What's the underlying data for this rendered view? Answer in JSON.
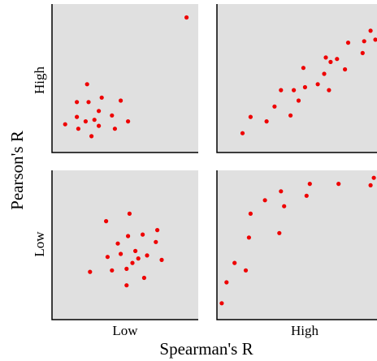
{
  "chart_data": {
    "type": "scatter",
    "xlabel": "Spearman's R",
    "ylabel": "Pearson's R",
    "x_groups": [
      "Low",
      "High"
    ],
    "y_groups": [
      "High",
      "Low"
    ],
    "point_color": "#ee0000",
    "panel_color": "#e0e0e0",
    "grid": false,
    "panels": [
      {
        "name": "low-spearman-high-pearson",
        "spearman": "Low",
        "pearson": "High",
        "xlim": [
          0,
          1
        ],
        "ylim": [
          0,
          1
        ],
        "points": [
          {
            "x": 0.09,
            "y": 0.19
          },
          {
            "x": 0.17,
            "y": 0.34
          },
          {
            "x": 0.17,
            "y": 0.24
          },
          {
            "x": 0.18,
            "y": 0.16
          },
          {
            "x": 0.23,
            "y": 0.21
          },
          {
            "x": 0.24,
            "y": 0.46
          },
          {
            "x": 0.25,
            "y": 0.34
          },
          {
            "x": 0.27,
            "y": 0.11
          },
          {
            "x": 0.29,
            "y": 0.22
          },
          {
            "x": 0.32,
            "y": 0.28
          },
          {
            "x": 0.32,
            "y": 0.18
          },
          {
            "x": 0.34,
            "y": 0.37
          },
          {
            "x": 0.41,
            "y": 0.25
          },
          {
            "x": 0.43,
            "y": 0.16
          },
          {
            "x": 0.47,
            "y": 0.35
          },
          {
            "x": 0.52,
            "y": 0.21
          },
          {
            "x": 0.92,
            "y": 0.91
          }
        ]
      },
      {
        "name": "high-spearman-high-pearson",
        "spearman": "High",
        "pearson": "High",
        "xlim": [
          0,
          1
        ],
        "ylim": [
          0,
          1
        ],
        "points": [
          {
            "x": 0.16,
            "y": 0.13
          },
          {
            "x": 0.21,
            "y": 0.24
          },
          {
            "x": 0.31,
            "y": 0.21
          },
          {
            "x": 0.36,
            "y": 0.31
          },
          {
            "x": 0.4,
            "y": 0.42
          },
          {
            "x": 0.46,
            "y": 0.25
          },
          {
            "x": 0.48,
            "y": 0.42
          },
          {
            "x": 0.51,
            "y": 0.35
          },
          {
            "x": 0.54,
            "y": 0.57
          },
          {
            "x": 0.55,
            "y": 0.44
          },
          {
            "x": 0.63,
            "y": 0.46
          },
          {
            "x": 0.67,
            "y": 0.53
          },
          {
            "x": 0.68,
            "y": 0.64
          },
          {
            "x": 0.7,
            "y": 0.42
          },
          {
            "x": 0.71,
            "y": 0.61
          },
          {
            "x": 0.75,
            "y": 0.63
          },
          {
            "x": 0.8,
            "y": 0.56
          },
          {
            "x": 0.82,
            "y": 0.74
          },
          {
            "x": 0.91,
            "y": 0.67
          },
          {
            "x": 0.92,
            "y": 0.75
          },
          {
            "x": 0.96,
            "y": 0.82
          },
          {
            "x": 0.99,
            "y": 0.76
          }
        ]
      },
      {
        "name": "low-spearman-low-pearson",
        "spearman": "Low",
        "pearson": "Low",
        "xlim": [
          0,
          1
        ],
        "ylim": [
          0,
          1
        ],
        "points": [
          {
            "x": 0.26,
            "y": 0.32
          },
          {
            "x": 0.37,
            "y": 0.66
          },
          {
            "x": 0.38,
            "y": 0.42
          },
          {
            "x": 0.41,
            "y": 0.33
          },
          {
            "x": 0.45,
            "y": 0.51
          },
          {
            "x": 0.47,
            "y": 0.44
          },
          {
            "x": 0.51,
            "y": 0.23
          },
          {
            "x": 0.51,
            "y": 0.34
          },
          {
            "x": 0.52,
            "y": 0.56
          },
          {
            "x": 0.53,
            "y": 0.71
          },
          {
            "x": 0.55,
            "y": 0.38
          },
          {
            "x": 0.57,
            "y": 0.46
          },
          {
            "x": 0.59,
            "y": 0.41
          },
          {
            "x": 0.62,
            "y": 0.57
          },
          {
            "x": 0.63,
            "y": 0.28
          },
          {
            "x": 0.65,
            "y": 0.43
          },
          {
            "x": 0.71,
            "y": 0.52
          },
          {
            "x": 0.72,
            "y": 0.6
          },
          {
            "x": 0.75,
            "y": 0.4
          }
        ]
      },
      {
        "name": "high-spearman-low-pearson",
        "spearman": "High",
        "pearson": "Low",
        "xlim": [
          0,
          1
        ],
        "ylim": [
          0,
          1
        ],
        "points": [
          {
            "x": 0.03,
            "y": 0.11
          },
          {
            "x": 0.06,
            "y": 0.25
          },
          {
            "x": 0.11,
            "y": 0.38
          },
          {
            "x": 0.18,
            "y": 0.33
          },
          {
            "x": 0.2,
            "y": 0.55
          },
          {
            "x": 0.21,
            "y": 0.71
          },
          {
            "x": 0.3,
            "y": 0.8
          },
          {
            "x": 0.39,
            "y": 0.58
          },
          {
            "x": 0.4,
            "y": 0.86
          },
          {
            "x": 0.42,
            "y": 0.76
          },
          {
            "x": 0.56,
            "y": 0.83
          },
          {
            "x": 0.58,
            "y": 0.91
          },
          {
            "x": 0.76,
            "y": 0.91
          },
          {
            "x": 0.96,
            "y": 0.9
          },
          {
            "x": 0.98,
            "y": 0.95
          },
          {
            "x": 1.04,
            "y": 0.92
          }
        ]
      }
    ]
  }
}
